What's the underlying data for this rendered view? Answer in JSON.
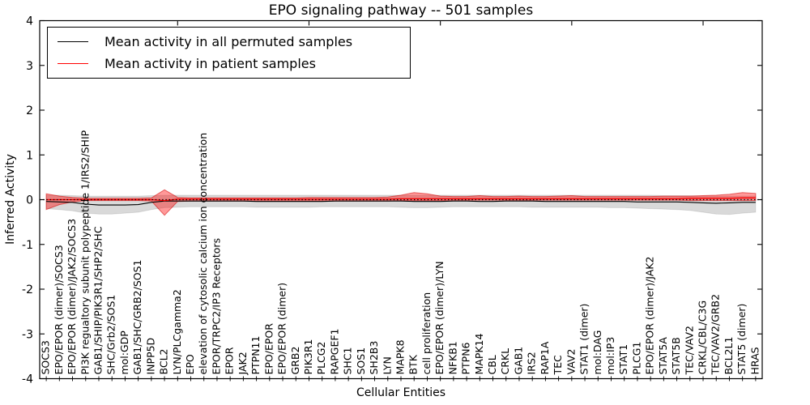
{
  "figure": {
    "background": "#ffffff",
    "frame_color": "#000000"
  },
  "legend": {
    "position": "upper left",
    "items": [
      {
        "label": "Mean activity in all permuted samples",
        "color": "#000000"
      },
      {
        "label": "Mean activity in patient samples",
        "color": "#ff0000"
      }
    ]
  },
  "chart_data": {
    "type": "line",
    "title": "EPO signaling pathway -- 501 samples",
    "xlabel": "Cellular Entities",
    "ylabel": "Inferred Activity",
    "ylim": [
      -4,
      4
    ],
    "yticks": [
      -4,
      -3,
      -2,
      -1,
      0,
      1,
      2,
      3,
      4
    ],
    "grid": false,
    "legend_position": "upper left",
    "zero_line": {
      "y": 0,
      "style": "dotted",
      "color": "#000000"
    },
    "categories": [
      "SOCS3",
      "EPO/EPOR (dimer)/SOCS3",
      "EPO/EPOR (dimer)/JAK2/SOCS3",
      "PI3K regualtory subunit polypeptide 1/IRS2/SHIP",
      "GAB1/SHIP/PIK3R1/SHP2/SHC",
      "SHC/Grb2/SOS1",
      "mol:GDP",
      "GAB1/SHC/GRB2/SOS1",
      "INPP5D",
      "BCL2",
      "LYN/PLCgamma2",
      "EPO",
      "elevation of cytosolic calcium ion concentration",
      "EPOR/TRPC2/IP3 Receptors",
      "EPOR",
      "JAK2",
      "PTPN11",
      "EPO/EPOR",
      "EPO/EPOR (dimer)",
      "GRB2",
      "PIK3R1",
      "PLCG2",
      "RAPGEF1",
      "SHC1",
      "SOS1",
      "SH2B3",
      "LYN",
      "MAPK8",
      "BTK",
      "cell proliferation",
      "EPO/EPOR (dimer)/LYN",
      "NFKB1",
      "PTPN6",
      "MAPK14",
      "CBL",
      "CRKL",
      "GAB1",
      "IRS2",
      "RAP1A",
      "TEC",
      "VAV2",
      "STAT1 (dimer)",
      "mol:DAG",
      "mol:IP3",
      "STAT1",
      "PLCG1",
      "EPO/EPOR (dimer)/JAK2",
      "STAT5A",
      "STAT5B",
      "TEC/VAV2",
      "CRKL/CBL/C3G",
      "TEC/VAV2/GRB2",
      "BCL2L1",
      "STAT5 (dimer)",
      "HRAS"
    ],
    "series": [
      {
        "name": "Mean activity in all permuted samples",
        "color": "#000000",
        "values": [
          -0.04,
          -0.05,
          -0.06,
          -0.1,
          -0.12,
          -0.12,
          -0.12,
          -0.11,
          -0.06,
          -0.03,
          -0.03,
          -0.03,
          -0.03,
          -0.03,
          -0.03,
          -0.03,
          -0.04,
          -0.04,
          -0.04,
          -0.04,
          -0.04,
          -0.04,
          -0.03,
          -0.03,
          -0.03,
          -0.03,
          -0.03,
          -0.03,
          -0.04,
          -0.04,
          -0.04,
          -0.03,
          -0.03,
          -0.04,
          -0.04,
          -0.03,
          -0.03,
          -0.03,
          -0.04,
          -0.04,
          -0.04,
          -0.04,
          -0.04,
          -0.04,
          -0.04,
          -0.05,
          -0.05,
          -0.05,
          -0.05,
          -0.06,
          -0.07,
          -0.08,
          -0.07,
          -0.06,
          -0.06
        ]
      },
      {
        "name": "Mean activity in patient samples",
        "color": "#ff0000",
        "values": [
          0.0,
          0.0,
          0.0,
          0.0,
          0.0,
          0.0,
          0.0,
          0.0,
          0.0,
          -0.02,
          0.01,
          0.01,
          0.01,
          0.01,
          0.01,
          0.01,
          0.01,
          0.01,
          0.01,
          0.01,
          0.01,
          0.01,
          0.01,
          0.01,
          0.01,
          0.01,
          0.01,
          0.02,
          0.02,
          0.02,
          0.02,
          0.02,
          0.02,
          0.02,
          0.02,
          0.02,
          0.02,
          0.02,
          0.02,
          0.02,
          0.02,
          0.02,
          0.02,
          0.02,
          0.02,
          0.02,
          0.02,
          0.02,
          0.02,
          0.03,
          0.03,
          0.03,
          0.03,
          0.04,
          0.04
        ]
      }
    ],
    "bands": [
      {
        "name": "permuted-range",
        "color": "rgba(0,0,0,0.15)",
        "edge": "rgba(0,0,0,0.10)",
        "lower": [
          -0.2,
          -0.22,
          -0.25,
          -0.3,
          -0.32,
          -0.32,
          -0.3,
          -0.28,
          -0.22,
          -0.18,
          -0.17,
          -0.16,
          -0.16,
          -0.16,
          -0.16,
          -0.16,
          -0.17,
          -0.17,
          -0.17,
          -0.17,
          -0.17,
          -0.16,
          -0.16,
          -0.16,
          -0.16,
          -0.16,
          -0.16,
          -0.17,
          -0.18,
          -0.18,
          -0.17,
          -0.16,
          -0.16,
          -0.16,
          -0.16,
          -0.16,
          -0.16,
          -0.17,
          -0.17,
          -0.17,
          -0.17,
          -0.17,
          -0.17,
          -0.18,
          -0.18,
          -0.19,
          -0.2,
          -0.21,
          -0.22,
          -0.24,
          -0.28,
          -0.32,
          -0.33,
          -0.3,
          -0.28
        ],
        "upper": [
          0.1,
          0.1,
          0.09,
          0.08,
          0.08,
          0.08,
          0.08,
          0.08,
          0.09,
          0.1,
          0.1,
          0.1,
          0.1,
          0.1,
          0.1,
          0.1,
          0.1,
          0.1,
          0.1,
          0.1,
          0.1,
          0.1,
          0.1,
          0.1,
          0.1,
          0.1,
          0.1,
          0.1,
          0.1,
          0.1,
          0.1,
          0.1,
          0.1,
          0.1,
          0.1,
          0.1,
          0.1,
          0.1,
          0.1,
          0.1,
          0.1,
          0.1,
          0.1,
          0.1,
          0.1,
          0.1,
          0.1,
          0.09,
          0.09,
          0.09,
          0.08,
          0.08,
          0.08,
          0.08,
          0.08
        ]
      },
      {
        "name": "patient-range",
        "color": "rgba(255,0,0,0.40)",
        "edge": "rgba(210,0,0,0.55)",
        "lower": [
          -0.22,
          -0.11,
          -0.05,
          -0.02,
          -0.02,
          -0.02,
          -0.02,
          -0.02,
          -0.03,
          -0.35,
          -0.04,
          -0.03,
          -0.03,
          -0.03,
          -0.03,
          -0.03,
          -0.03,
          -0.03,
          -0.03,
          -0.03,
          -0.03,
          -0.03,
          -0.03,
          -0.03,
          -0.03,
          -0.03,
          -0.03,
          -0.02,
          -0.02,
          -0.02,
          -0.02,
          -0.01,
          -0.01,
          -0.01,
          -0.01,
          -0.01,
          -0.01,
          -0.01,
          -0.01,
          -0.01,
          -0.01,
          -0.01,
          -0.01,
          -0.01,
          -0.01,
          -0.01,
          -0.01,
          -0.01,
          -0.01,
          -0.02,
          -0.02,
          -0.02,
          -0.02,
          -0.02,
          -0.02
        ],
        "upper": [
          0.13,
          0.08,
          0.05,
          0.03,
          0.03,
          0.03,
          0.03,
          0.03,
          0.04,
          0.22,
          0.05,
          0.04,
          0.04,
          0.04,
          0.04,
          0.04,
          0.04,
          0.04,
          0.04,
          0.04,
          0.05,
          0.05,
          0.05,
          0.05,
          0.05,
          0.05,
          0.06,
          0.1,
          0.16,
          0.13,
          0.08,
          0.07,
          0.07,
          0.09,
          0.07,
          0.07,
          0.08,
          0.07,
          0.07,
          0.08,
          0.09,
          0.07,
          0.07,
          0.07,
          0.07,
          0.07,
          0.07,
          0.08,
          0.08,
          0.08,
          0.09,
          0.1,
          0.12,
          0.16,
          0.14
        ]
      }
    ]
  }
}
